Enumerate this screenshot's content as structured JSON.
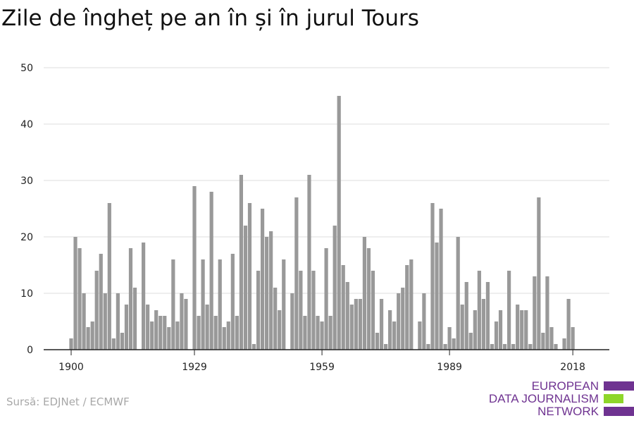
{
  "title": "Zile de îngheț pe an în și în jurul Tours",
  "source": "Sursă: EDJNet / ECMWF",
  "logo": {
    "line1": "EUROPEAN",
    "line2": "DATA JOURNALISM",
    "line3": "NETWORK",
    "colors": {
      "purple": "#6f3391",
      "green": "#8ed62a"
    }
  },
  "chart_data": {
    "type": "bar",
    "title": "Zile de îngheț pe an în și în jurul Tours",
    "xlabel": "",
    "ylabel": "",
    "ylim": [
      0,
      50
    ],
    "yticks": [
      0,
      10,
      20,
      30,
      40,
      50
    ],
    "xticks": [
      1900,
      1929,
      1959,
      1989,
      2018
    ],
    "grid": true,
    "bar_color": "#999999",
    "x": [
      1900,
      1901,
      1902,
      1903,
      1904,
      1905,
      1906,
      1907,
      1908,
      1909,
      1910,
      1911,
      1912,
      1913,
      1914,
      1915,
      1916,
      1917,
      1918,
      1919,
      1920,
      1921,
      1922,
      1923,
      1924,
      1925,
      1926,
      1927,
      1928,
      1929,
      1930,
      1931,
      1932,
      1933,
      1934,
      1935,
      1936,
      1937,
      1938,
      1939,
      1940,
      1941,
      1942,
      1943,
      1944,
      1945,
      1946,
      1947,
      1948,
      1949,
      1950,
      1951,
      1952,
      1953,
      1954,
      1955,
      1956,
      1957,
      1958,
      1959,
      1960,
      1961,
      1962,
      1963,
      1964,
      1965,
      1966,
      1967,
      1968,
      1969,
      1970,
      1971,
      1972,
      1973,
      1974,
      1975,
      1976,
      1977,
      1978,
      1979,
      1980,
      1981,
      1982,
      1983,
      1984,
      1985,
      1986,
      1987,
      1988,
      1989,
      1990,
      1991,
      1992,
      1993,
      1994,
      1995,
      1996,
      1997,
      1998,
      1999,
      2000,
      2001,
      2002,
      2003,
      2004,
      2005,
      2006,
      2007,
      2008,
      2009,
      2010,
      2011,
      2012,
      2013,
      2014,
      2015,
      2016,
      2017,
      2018
    ],
    "values": [
      2,
      20,
      18,
      10,
      4,
      5,
      14,
      17,
      10,
      26,
      2,
      10,
      3,
      8,
      18,
      11,
      0,
      19,
      8,
      5,
      7,
      6,
      6,
      4,
      16,
      5,
      10,
      9,
      0,
      29,
      6,
      16,
      8,
      28,
      6,
      16,
      4,
      5,
      17,
      6,
      31,
      22,
      26,
      1,
      14,
      25,
      20,
      21,
      11,
      7,
      16,
      0,
      10,
      27,
      14,
      6,
      31,
      14,
      6,
      5,
      18,
      6,
      22,
      45,
      15,
      12,
      8,
      9,
      9,
      20,
      18,
      14,
      3,
      9,
      1,
      7,
      5,
      10,
      11,
      15,
      16,
      0,
      5,
      10,
      1,
      26,
      19,
      25,
      1,
      4,
      2,
      20,
      8,
      12,
      3,
      7,
      14,
      9,
      12,
      1,
      5,
      7,
      1,
      14,
      1,
      8,
      7,
      7,
      1,
      13,
      27,
      3,
      13,
      4,
      1,
      0,
      2,
      9,
      4
    ]
  }
}
